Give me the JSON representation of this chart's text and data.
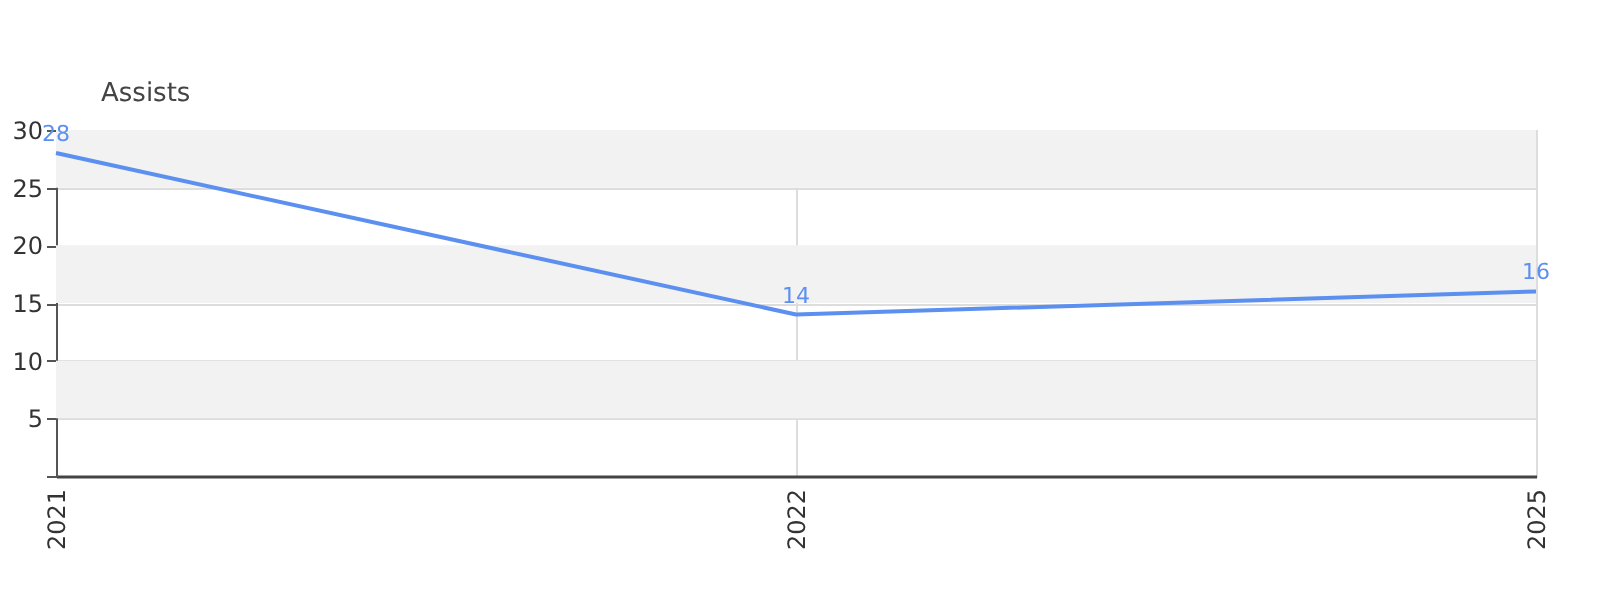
{
  "chart_data": {
    "type": "line",
    "ylabel": "Assists",
    "categories": [
      "2021",
      "2022",
      "2025"
    ],
    "series": [
      {
        "color": "#5b8ff0",
        "values": [
          28,
          14,
          16
        ]
      }
    ],
    "ylim": [
      0,
      30
    ],
    "yticks": [
      {
        "value": 0,
        "label": null
      },
      5,
      10,
      15,
      20,
      25,
      30
    ],
    "grid": true,
    "data_labels": true,
    "marker": "none",
    "line_style": "solid",
    "bands": [
      {
        "axis": "y",
        "from": 5,
        "to": 10,
        "color": "#f2f2f2"
      },
      {
        "axis": "y",
        "from": 15,
        "to": 20,
        "color": "#f2f2f2"
      },
      {
        "axis": "y",
        "from": 25,
        "to": 30,
        "color": "#f2f2f2"
      }
    ]
  }
}
